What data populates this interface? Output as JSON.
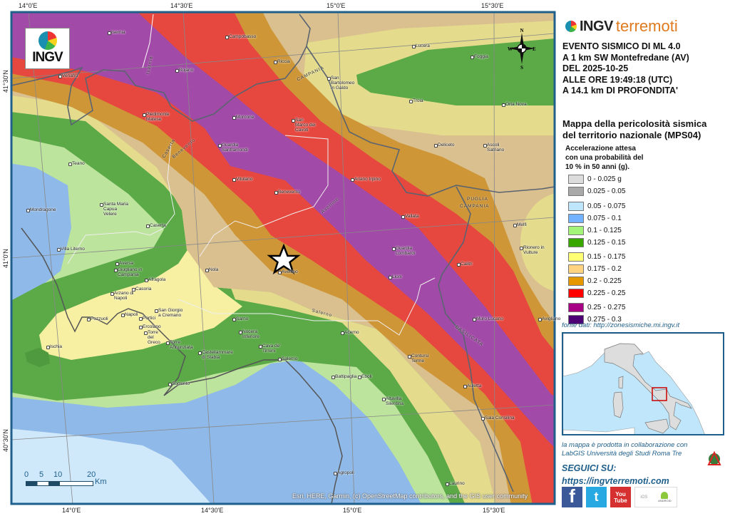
{
  "map": {
    "coords": {
      "top": [
        "14°0'E",
        "14°30'E",
        "15°0'E",
        "15°30'E"
      ],
      "bottom": [
        "14°0'E",
        "14°30'E",
        "15°0'E",
        "15°30'E"
      ],
      "left": [
        "41°30'N",
        "41°0'N",
        "40°30'N"
      ]
    },
    "logo_text": "INGV",
    "compass": {
      "n": "N",
      "s": "S",
      "e": "E",
      "w": "W"
    },
    "scale": {
      "ticks": [
        "0",
        "5",
        "10",
        "20"
      ],
      "unit": "Km"
    },
    "attribution": "Esri, HERE, Garmin, (c) OpenStreetMap contributors, and the GIS user community",
    "places": [
      "Isernia",
      "Campobasso",
      "Venafro",
      "Bojano",
      "Piedimonte Matese",
      "Morcone",
      "Guardia Sanframondi",
      "Vitulano",
      "Benevento",
      "Teano",
      "Lucera",
      "Foggia",
      "Troia",
      "Orta Nova",
      "San Bartolomeo in Galdo",
      "Riccia",
      "San Marco dei Cavoti",
      "Ariano Irpino",
      "Deliceto",
      "Ascoli Satriano",
      "Vallata",
      "Avellino",
      "Guardia Lombardi",
      "Lioni",
      "Calitri",
      "Muro Lucano",
      "Rionero in Vulture",
      "Avigliano",
      "Salerno",
      "Acerno",
      "Battipaglia",
      "Eboli",
      "Contursi Terme",
      "Altavilla Silentina",
      "Auletta",
      "Sala Consilina",
      "Mondragone",
      "Santa Maria Capua Vetere",
      "Caserta",
      "Villa Literno",
      "Aversa",
      "Giugliano in Campania",
      "Afragola",
      "Casoria",
      "Arzano di Napoli",
      "Pozzuoli",
      "Napoli",
      "Portici",
      "San Giorgio a Cremano",
      "Ercolano",
      "Torre del Greco",
      "Torre Annunziata",
      "Castellammare di Stabia",
      "Sorrento",
      "Ischia",
      "Nola",
      "Sarno",
      "Nocera Inferiore",
      "Cava de' Tirreni",
      "Agropoli",
      "Laurino",
      "Melfi"
    ],
    "regions": [
      "CAMPANIA",
      "PUGLIA",
      "CAMPANIA",
      "BASILICATA",
      "Isernia",
      "Caserta",
      "Benevento",
      "Avellino",
      "Salerno"
    ],
    "epicenter_icon": "star-icon",
    "band_colors": {
      "purple": "#a24aa8",
      "red": "#e6483f",
      "orange": "#cf9638",
      "tan": "#dbc08f",
      "yellow": "#e4dc8c",
      "naples_yellow": "#f7f0a2",
      "green": "#5ca948",
      "light_green": "#bce49c",
      "blue": "#8fb9e8",
      "light_blue": "#cfe9fb"
    }
  },
  "panel": {
    "brand": {
      "ingv": "INGV",
      "terremoti": "terremoti"
    },
    "event": [
      "EVENTO SISMICO DI ML 4.0",
      "A 1 km SW Montefredane (AV)",
      "DEL 2025-10-25",
      "ALLE ORE 19:49:18 (UTC)",
      "A 14.1 km DI PROFONDITA'"
    ],
    "legend_title": [
      "Mappa della pericolosità sismica",
      "del territorio nazionale (MPS04)"
    ],
    "legend_sub": [
      "Accelerazione attesa",
      "con una probabilità del",
      "10 % in 50 anni (g)."
    ],
    "legend": [
      {
        "label": "0 - 0.025 g",
        "color": "#dcdcdc"
      },
      {
        "label": "0.025 - 0.05",
        "color": "#a9a9a9"
      },
      {
        "label": "0.05 - 0.075",
        "color": "#bee6ff"
      },
      {
        "label": "0.075 - 0.1",
        "color": "#73b2ff"
      },
      {
        "label": "0.1 - 0.125",
        "color": "#a3f57a"
      },
      {
        "label": "0.125 - 0.15",
        "color": "#38a800"
      },
      {
        "label": "0.15 - 0.175",
        "color": "#ffff73"
      },
      {
        "label": "0.175 - 0.2",
        "color": "#ffd37f"
      },
      {
        "label": "0.2 - 0.225",
        "color": "#e69800"
      },
      {
        "label": "0.225 - 0.25",
        "color": "#ff0000"
      },
      {
        "label": "0.25 - 0.275",
        "color": "#a80084"
      },
      {
        "label": "0.275 - 0.3",
        "color": "#4c0073"
      }
    ],
    "fonte": "fonte dati: http://zonesismiche.mi.ingv.it",
    "credits": [
      "la mappa è prodotta in collaborazione con",
      "LabGIS Università degli Studi Roma Tre"
    ],
    "labgis_logo": "LAB GIS",
    "seguici": "SEGUICI SU:",
    "url": "https://ingvterremoti.com",
    "social": {
      "facebook": "f",
      "twitter": "t",
      "youtube_top": "You",
      "youtube_bottom": "Tube",
      "ios": "iOS",
      "android": "ANDROID"
    }
  }
}
